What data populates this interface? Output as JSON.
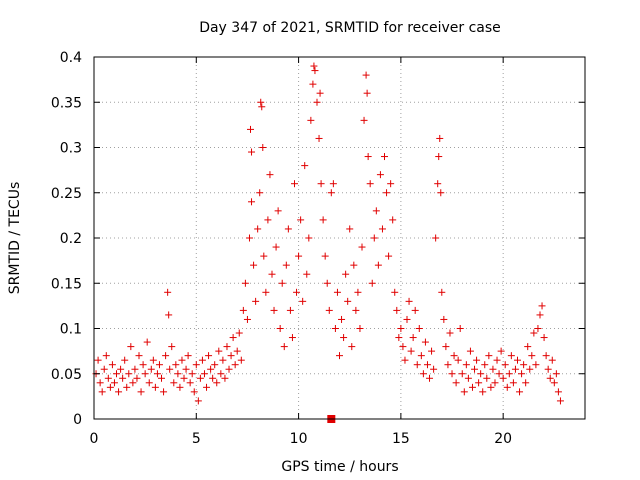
{
  "chart_data": {
    "type": "scatter",
    "title": "Day 347 of 2021, SRMTID for receiver case",
    "xlabel": "GPS time / hours",
    "ylabel": "SRMTID / TECUs",
    "xlim": [
      0,
      24
    ],
    "ylim": [
      0,
      0.4
    ],
    "x_ticks": [
      0,
      5,
      10,
      15,
      20
    ],
    "x_tick_labels": [
      "0",
      "5",
      "10",
      "15",
      "20"
    ],
    "y_ticks": [
      0,
      0.05,
      0.1,
      0.15,
      0.2,
      0.25,
      0.3,
      0.35,
      0.4
    ],
    "y_tick_labels": [
      "0",
      "0.05",
      "0.1",
      "0.15",
      "0.2",
      "0.25",
      "0.3",
      "0.35",
      "0.4"
    ],
    "grid": true,
    "marker": "plus",
    "color": "#e00000",
    "flag_marker": {
      "x": 11.6,
      "y": 0.0
    },
    "series": [
      {
        "name": "SRMTID",
        "points": [
          [
            0.1,
            0.05
          ],
          [
            0.2,
            0.065
          ],
          [
            0.3,
            0.04
          ],
          [
            0.4,
            0.03
          ],
          [
            0.5,
            0.055
          ],
          [
            0.6,
            0.07
          ],
          [
            0.7,
            0.045
          ],
          [
            0.8,
            0.035
          ],
          [
            0.9,
            0.06
          ],
          [
            1.0,
            0.04
          ],
          [
            1.1,
            0.05
          ],
          [
            1.2,
            0.03
          ],
          [
            1.3,
            0.055
          ],
          [
            1.4,
            0.045
          ],
          [
            1.5,
            0.065
          ],
          [
            1.6,
            0.035
          ],
          [
            1.7,
            0.05
          ],
          [
            1.8,
            0.08
          ],
          [
            1.9,
            0.04
          ],
          [
            2.0,
            0.055
          ],
          [
            2.1,
            0.045
          ],
          [
            2.2,
            0.07
          ],
          [
            2.3,
            0.03
          ],
          [
            2.4,
            0.06
          ],
          [
            2.5,
            0.05
          ],
          [
            2.6,
            0.085
          ],
          [
            2.7,
            0.04
          ],
          [
            2.8,
            0.055
          ],
          [
            2.9,
            0.065
          ],
          [
            3.0,
            0.035
          ],
          [
            3.1,
            0.05
          ],
          [
            3.2,
            0.06
          ],
          [
            3.3,
            0.045
          ],
          [
            3.4,
            0.03
          ],
          [
            3.5,
            0.07
          ],
          [
            3.6,
            0.14
          ],
          [
            3.65,
            0.115
          ],
          [
            3.7,
            0.055
          ],
          [
            3.8,
            0.08
          ],
          [
            3.9,
            0.04
          ],
          [
            4.0,
            0.06
          ],
          [
            4.1,
            0.05
          ],
          [
            4.2,
            0.035
          ],
          [
            4.3,
            0.065
          ],
          [
            4.4,
            0.045
          ],
          [
            4.5,
            0.055
          ],
          [
            4.6,
            0.07
          ],
          [
            4.7,
            0.04
          ],
          [
            4.8,
            0.05
          ],
          [
            4.9,
            0.03
          ],
          [
            5.0,
            0.06
          ],
          [
            5.1,
            0.02
          ],
          [
            5.2,
            0.045
          ],
          [
            5.3,
            0.065
          ],
          [
            5.4,
            0.05
          ],
          [
            5.5,
            0.035
          ],
          [
            5.6,
            0.07
          ],
          [
            5.7,
            0.055
          ],
          [
            5.8,
            0.045
          ],
          [
            5.9,
            0.06
          ],
          [
            6.0,
            0.04
          ],
          [
            6.1,
            0.075
          ],
          [
            6.2,
            0.05
          ],
          [
            6.3,
            0.065
          ],
          [
            6.4,
            0.045
          ],
          [
            6.5,
            0.08
          ],
          [
            6.6,
            0.055
          ],
          [
            6.7,
            0.07
          ],
          [
            6.8,
            0.09
          ],
          [
            6.9,
            0.06
          ],
          [
            7.0,
            0.075
          ],
          [
            7.1,
            0.095
          ],
          [
            7.2,
            0.065
          ],
          [
            7.3,
            0.12
          ],
          [
            7.4,
            0.15
          ],
          [
            7.5,
            0.11
          ],
          [
            7.6,
            0.2
          ],
          [
            7.7,
            0.24
          ],
          [
            7.65,
            0.32
          ],
          [
            7.7,
            0.295
          ],
          [
            7.8,
            0.17
          ],
          [
            7.9,
            0.13
          ],
          [
            8.0,
            0.21
          ],
          [
            8.1,
            0.25
          ],
          [
            8.15,
            0.35
          ],
          [
            8.2,
            0.345
          ],
          [
            8.25,
            0.3
          ],
          [
            8.3,
            0.18
          ],
          [
            8.4,
            0.14
          ],
          [
            8.5,
            0.22
          ],
          [
            8.6,
            0.27
          ],
          [
            8.7,
            0.16
          ],
          [
            8.8,
            0.12
          ],
          [
            8.9,
            0.19
          ],
          [
            9.0,
            0.23
          ],
          [
            9.1,
            0.1
          ],
          [
            9.2,
            0.15
          ],
          [
            9.3,
            0.08
          ],
          [
            9.4,
            0.17
          ],
          [
            9.5,
            0.21
          ],
          [
            9.6,
            0.12
          ],
          [
            9.7,
            0.09
          ],
          [
            9.8,
            0.26
          ],
          [
            9.9,
            0.14
          ],
          [
            10.0,
            0.18
          ],
          [
            10.1,
            0.22
          ],
          [
            10.2,
            0.13
          ],
          [
            10.3,
            0.28
          ],
          [
            10.4,
            0.16
          ],
          [
            10.5,
            0.2
          ],
          [
            10.6,
            0.33
          ],
          [
            10.7,
            0.37
          ],
          [
            10.75,
            0.39
          ],
          [
            10.8,
            0.385
          ],
          [
            10.9,
            0.35
          ],
          [
            11.0,
            0.31
          ],
          [
            11.05,
            0.36
          ],
          [
            11.1,
            0.26
          ],
          [
            11.2,
            0.22
          ],
          [
            11.3,
            0.18
          ],
          [
            11.4,
            0.15
          ],
          [
            11.5,
            0.12
          ],
          [
            11.6,
            0.25
          ],
          [
            11.7,
            0.26
          ],
          [
            11.8,
            0.1
          ],
          [
            11.9,
            0.14
          ],
          [
            12.0,
            0.07
          ],
          [
            12.1,
            0.11
          ],
          [
            12.2,
            0.09
          ],
          [
            12.3,
            0.16
          ],
          [
            12.4,
            0.13
          ],
          [
            12.5,
            0.21
          ],
          [
            12.6,
            0.08
          ],
          [
            12.7,
            0.17
          ],
          [
            12.8,
            0.12
          ],
          [
            12.9,
            0.14
          ],
          [
            13.0,
            0.1
          ],
          [
            13.1,
            0.19
          ],
          [
            13.2,
            0.33
          ],
          [
            13.3,
            0.38
          ],
          [
            13.35,
            0.36
          ],
          [
            13.4,
            0.29
          ],
          [
            13.5,
            0.26
          ],
          [
            13.6,
            0.15
          ],
          [
            13.7,
            0.2
          ],
          [
            13.8,
            0.23
          ],
          [
            13.9,
            0.17
          ],
          [
            14.0,
            0.27
          ],
          [
            14.1,
            0.21
          ],
          [
            14.2,
            0.29
          ],
          [
            14.3,
            0.25
          ],
          [
            14.4,
            0.18
          ],
          [
            14.5,
            0.26
          ],
          [
            14.6,
            0.22
          ],
          [
            14.7,
            0.14
          ],
          [
            14.8,
            0.12
          ],
          [
            14.9,
            0.09
          ],
          [
            15.0,
            0.1
          ],
          [
            15.1,
            0.08
          ],
          [
            15.2,
            0.065
          ],
          [
            15.3,
            0.11
          ],
          [
            15.4,
            0.13
          ],
          [
            15.5,
            0.075
          ],
          [
            15.6,
            0.09
          ],
          [
            15.7,
            0.12
          ],
          [
            15.8,
            0.06
          ],
          [
            15.9,
            0.1
          ],
          [
            16.0,
            0.07
          ],
          [
            16.1,
            0.05
          ],
          [
            16.2,
            0.085
          ],
          [
            16.3,
            0.06
          ],
          [
            16.4,
            0.045
          ],
          [
            16.5,
            0.075
          ],
          [
            16.6,
            0.055
          ],
          [
            16.7,
            0.2
          ],
          [
            16.8,
            0.26
          ],
          [
            16.85,
            0.29
          ],
          [
            16.9,
            0.31
          ],
          [
            16.95,
            0.25
          ],
          [
            17.0,
            0.14
          ],
          [
            17.1,
            0.11
          ],
          [
            17.2,
            0.08
          ],
          [
            17.3,
            0.06
          ],
          [
            17.4,
            0.095
          ],
          [
            17.5,
            0.05
          ],
          [
            17.6,
            0.07
          ],
          [
            17.7,
            0.04
          ],
          [
            17.8,
            0.065
          ],
          [
            17.9,
            0.1
          ],
          [
            18.0,
            0.05
          ],
          [
            18.1,
            0.03
          ],
          [
            18.2,
            0.06
          ],
          [
            18.3,
            0.045
          ],
          [
            18.4,
            0.075
          ],
          [
            18.5,
            0.035
          ],
          [
            18.6,
            0.055
          ],
          [
            18.7,
            0.065
          ],
          [
            18.8,
            0.04
          ],
          [
            18.9,
            0.05
          ],
          [
            19.0,
            0.03
          ],
          [
            19.1,
            0.06
          ],
          [
            19.2,
            0.045
          ],
          [
            19.3,
            0.07
          ],
          [
            19.4,
            0.035
          ],
          [
            19.5,
            0.055
          ],
          [
            19.6,
            0.04
          ],
          [
            19.7,
            0.065
          ],
          [
            19.8,
            0.05
          ],
          [
            19.9,
            0.075
          ],
          [
            20.0,
            0.045
          ],
          [
            20.1,
            0.06
          ],
          [
            20.2,
            0.035
          ],
          [
            20.3,
            0.05
          ],
          [
            20.4,
            0.07
          ],
          [
            20.5,
            0.04
          ],
          [
            20.6,
            0.055
          ],
          [
            20.7,
            0.065
          ],
          [
            20.8,
            0.03
          ],
          [
            20.9,
            0.05
          ],
          [
            21.0,
            0.06
          ],
          [
            21.1,
            0.04
          ],
          [
            21.2,
            0.08
          ],
          [
            21.3,
            0.055
          ],
          [
            21.4,
            0.07
          ],
          [
            21.5,
            0.095
          ],
          [
            21.6,
            0.06
          ],
          [
            21.7,
            0.1
          ],
          [
            21.8,
            0.115
          ],
          [
            21.9,
            0.125
          ],
          [
            22.0,
            0.09
          ],
          [
            22.1,
            0.07
          ],
          [
            22.2,
            0.055
          ],
          [
            22.3,
            0.045
          ],
          [
            22.4,
            0.065
          ],
          [
            22.5,
            0.04
          ],
          [
            22.6,
            0.05
          ],
          [
            22.7,
            0.03
          ],
          [
            22.8,
            0.02
          ]
        ]
      }
    ]
  }
}
